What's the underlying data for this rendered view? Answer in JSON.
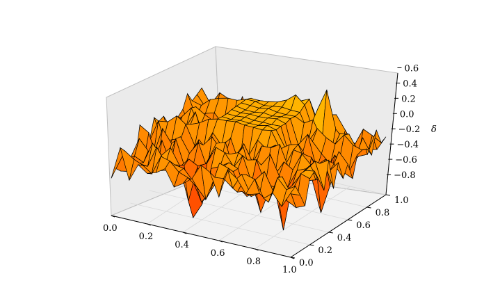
{
  "chart_data": {
    "type": "surface",
    "title": "",
    "xlabel": "",
    "ylabel": "",
    "zlabel": "δ",
    "x_ticks": [
      "0.0",
      "0.2",
      "0.4",
      "0.6",
      "0.8",
      "1.0"
    ],
    "y_ticks": [
      "0.0",
      "0.2",
      "0.4",
      "0.6",
      "0.8",
      "1.0"
    ],
    "z_ticks": [
      "−0.8",
      "−0.6",
      "−0.4",
      "−0.2",
      "0.0",
      "0.2",
      "0.4",
      "0.6"
    ],
    "xlim": [
      0,
      1
    ],
    "ylim": [
      0,
      1
    ],
    "zlim": [
      -0.9,
      0.65
    ],
    "grid": true,
    "colormap": "autumn",
    "edge_color": "#000000",
    "grid_resolution": 21,
    "features": [
      {
        "kind": "dip",
        "x": 0.35,
        "y": 0.2,
        "depth": -0.95
      },
      {
        "kind": "dip",
        "x": 0.45,
        "y": 0.1,
        "depth": -0.6
      },
      {
        "kind": "dip",
        "x": 0.8,
        "y": 0.3,
        "depth": -0.95
      },
      {
        "kind": "dip",
        "x": 0.7,
        "y": 0.25,
        "depth": -0.6
      },
      {
        "kind": "dip",
        "x": 0.85,
        "y": 0.6,
        "depth": -0.7
      },
      {
        "kind": "plateau",
        "x": [
          0.3,
          0.6
        ],
        "y": [
          0.55,
          0.9
        ],
        "z": 0.05
      },
      {
        "kind": "peak",
        "x": 0.55,
        "y": 0.95,
        "height": 0.45
      },
      {
        "kind": "peak",
        "x": 0.75,
        "y": 0.85,
        "height": 0.4
      }
    ]
  }
}
